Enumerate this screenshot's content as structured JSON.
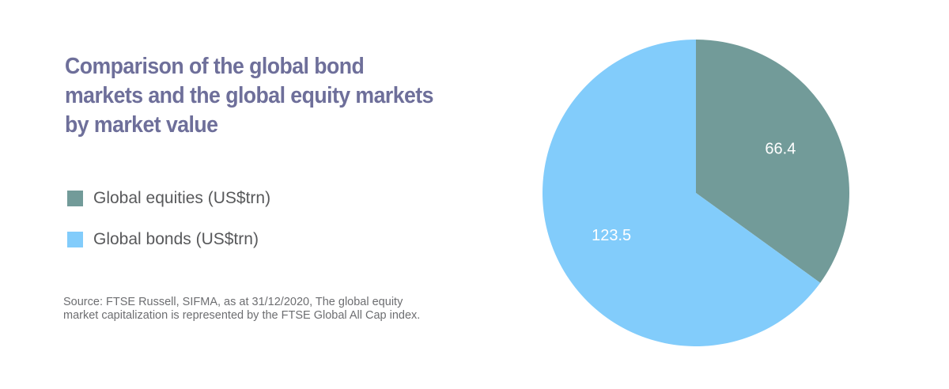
{
  "title_lines": [
    "Comparison of the global bond",
    "markets and the global equity markets",
    "by market value"
  ],
  "legend": [
    {
      "label": "Global equities (US$trn)",
      "color": "#729b99"
    },
    {
      "label": "Global bonds (US$trn)",
      "color": "#82ccfb"
    }
  ],
  "source_lines": [
    "Source: FTSE Russell, SIFMA, as at 31/12/2020, The global equity",
    "market capitalization is represented by the FTSE Global All Cap index."
  ],
  "chart_data": {
    "type": "pie",
    "title": "Comparison of the global bond markets and the global equity markets by market value",
    "start_angle": "12 o'clock",
    "direction": "clockwise",
    "legend_position": "left",
    "slices": [
      {
        "label": "Global equities (US$trn)",
        "value": 66.4,
        "value_label": "66.4",
        "color": "#729b99"
      },
      {
        "label": "Global bonds (US$trn)",
        "value": 123.5,
        "value_label": "123.5",
        "color": "#82ccfb"
      }
    ]
  }
}
